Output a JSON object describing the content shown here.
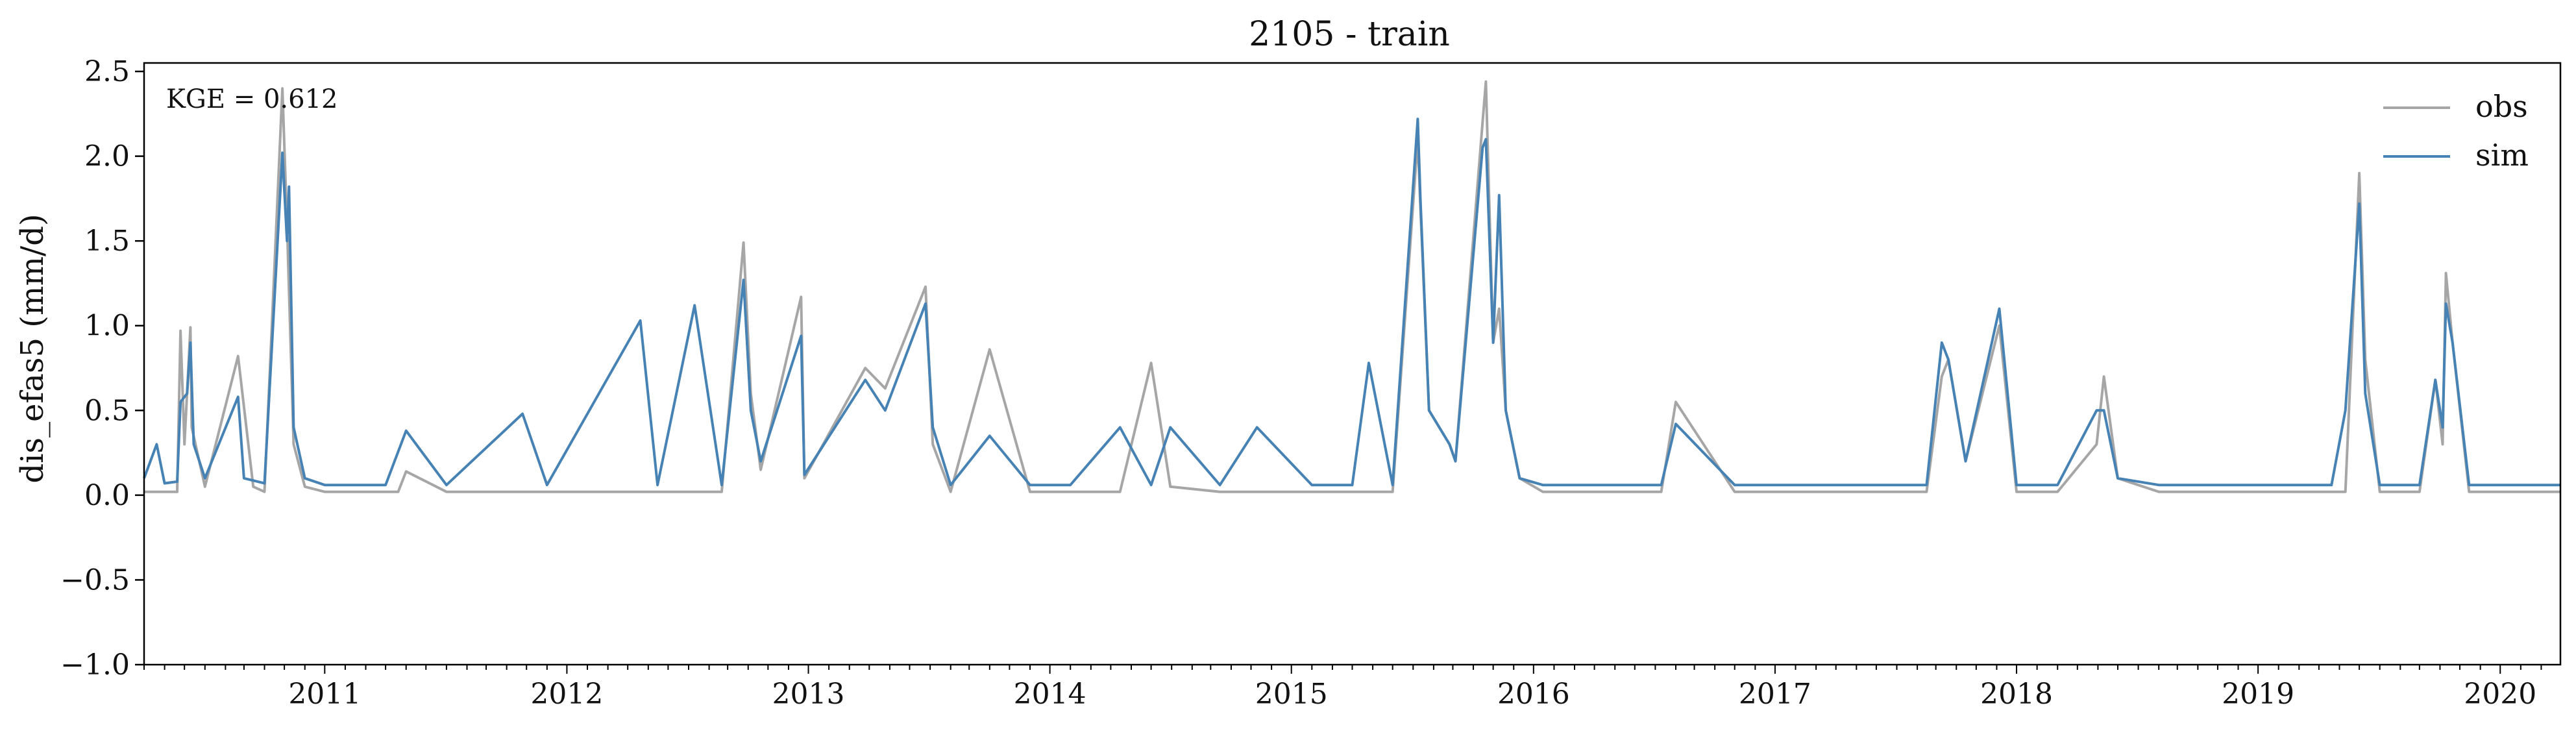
{
  "chart_data": {
    "type": "line",
    "title": "2105 - train",
    "xlabel": "",
    "ylabel": "dis_efas5 (mm/d)",
    "ylim": [
      -1.0,
      2.55
    ],
    "xlim": [
      "2010-10-01",
      "2020-09-30"
    ],
    "yticks": [
      "2.5",
      "2.0",
      "1.5",
      "1.0",
      "0.5",
      "0.0",
      "−0.5",
      "−1.0"
    ],
    "ytick_values": [
      2.5,
      2.0,
      1.5,
      1.0,
      0.5,
      0.0,
      -0.5,
      -1.0
    ],
    "xticks": [
      "2011",
      "2012",
      "2013",
      "2014",
      "2015",
      "2016",
      "2017",
      "2018",
      "2019",
      "2020"
    ],
    "grid": false,
    "legend_position": "top-right",
    "annotation": "KGE = 0.612",
    "colors": {
      "obs": "#a6a6a6",
      "sim": "#4682b4"
    },
    "series": [
      {
        "name": "obs",
        "x": [
          "2010-10-01",
          "2010-11-20",
          "2010-11-25",
          "2010-12-01",
          "2010-12-10",
          "2010-12-12",
          "2011-01-01",
          "2011-02-20",
          "2011-03-15",
          "2011-04-01",
          "2011-04-28",
          "2011-05-05",
          "2011-05-15",
          "2011-06-01",
          "2011-07-01",
          "2011-10-20",
          "2011-11-01",
          "2012-01-01",
          "2012-04-25",
          "2012-06-01",
          "2012-10-20",
          "2012-11-15",
          "2013-01-10",
          "2013-02-20",
          "2013-03-25",
          "2013-04-05",
          "2013-04-20",
          "2013-06-20",
          "2013-06-25",
          "2013-09-25",
          "2013-10-25",
          "2013-12-25",
          "2014-01-05",
          "2014-02-01",
          "2014-04-01",
          "2014-06-01",
          "2014-08-01",
          "2014-10-15",
          "2014-12-01",
          "2014-12-30",
          "2015-03-15",
          "2015-05-10",
          "2015-08-01",
          "2015-10-01",
          "2015-10-26",
          "2015-12-01",
          "2016-01-08",
          "2016-01-12",
          "2016-01-25",
          "2016-02-25",
          "2016-03-05",
          "2016-04-15",
          "2016-04-20",
          "2016-05-01",
          "2016-05-10",
          "2016-05-20",
          "2016-06-10",
          "2016-07-15",
          "2016-09-01",
          "2017-01-10",
          "2017-02-01",
          "2017-05-01",
          "2017-08-01",
          "2017-11-01",
          "2018-02-15",
          "2018-03-10",
          "2018-03-20",
          "2018-04-15",
          "2018-06-05",
          "2018-07-01",
          "2018-09-01",
          "2018-10-30",
          "2018-11-10",
          "2018-12-01",
          "2019-02-01",
          "2019-04-20",
          "2019-06-01",
          "2019-08-01",
          "2019-10-20",
          "2019-11-10",
          "2019-12-01",
          "2019-12-10",
          "2020-01-01",
          "2020-02-01",
          "2020-03-01",
          "2020-03-25",
          "2020-04-05",
          "2020-04-10",
          "2020-04-20",
          "2020-05-15",
          "2020-07-01",
          "2020-09-30"
        ],
        "values": [
          0.02,
          0.02,
          0.97,
          0.3,
          0.99,
          0.4,
          0.05,
          0.82,
          0.05,
          0.02,
          2.4,
          1.6,
          0.3,
          0.05,
          0.02,
          0.02,
          0.14,
          0.02,
          0.02,
          0.02,
          0.02,
          0.02,
          0.02,
          0.02,
          1.49,
          0.6,
          0.15,
          1.17,
          0.1,
          0.75,
          0.63,
          1.23,
          0.3,
          0.02,
          0.86,
          0.02,
          0.02,
          0.02,
          0.78,
          0.05,
          0.02,
          0.02,
          0.02,
          0.02,
          0.02,
          0.02,
          2.1,
          1.7,
          0.5,
          0.3,
          0.2,
          2.2,
          2.44,
          0.9,
          1.1,
          0.5,
          0.1,
          0.02,
          0.02,
          0.02,
          0.55,
          0.02,
          0.02,
          0.02,
          0.02,
          0.7,
          0.8,
          0.2,
          1.0,
          0.02,
          0.02,
          0.3,
          0.7,
          0.1,
          0.02,
          0.02,
          0.02,
          0.02,
          0.02,
          0.02,
          1.9,
          0.8,
          0.02,
          0.02,
          0.02,
          0.68,
          0.3,
          1.31,
          0.9,
          0.02,
          0.02,
          0.02
        ]
      },
      {
        "name": "sim",
        "x": [
          "2010-10-01",
          "2010-10-20",
          "2010-11-01",
          "2010-11-20",
          "2010-11-25",
          "2010-12-05",
          "2010-12-10",
          "2010-12-15",
          "2011-01-01",
          "2011-02-20",
          "2011-03-01",
          "2011-04-01",
          "2011-04-28",
          "2011-05-05",
          "2011-05-08",
          "2011-05-15",
          "2011-06-01",
          "2011-07-01",
          "2011-10-01",
          "2011-11-01",
          "2012-01-01",
          "2012-04-25",
          "2012-06-01",
          "2012-10-20",
          "2012-11-15",
          "2013-01-10",
          "2013-02-20",
          "2013-03-25",
          "2013-04-05",
          "2013-04-20",
          "2013-06-20",
          "2013-06-25",
          "2013-09-25",
          "2013-10-25",
          "2013-12-25",
          "2014-01-05",
          "2014-02-01",
          "2014-04-01",
          "2014-06-01",
          "2014-08-01",
          "2014-10-15",
          "2014-12-01",
          "2014-12-30",
          "2015-03-15",
          "2015-05-10",
          "2015-08-01",
          "2015-10-01",
          "2015-10-26",
          "2015-12-01",
          "2016-01-08",
          "2016-01-12",
          "2016-01-25",
          "2016-02-25",
          "2016-03-05",
          "2016-04-15",
          "2016-04-20",
          "2016-05-01",
          "2016-05-10",
          "2016-05-20",
          "2016-06-10",
          "2016-07-15",
          "2016-09-01",
          "2017-01-10",
          "2017-02-01",
          "2017-05-01",
          "2017-08-01",
          "2017-11-01",
          "2018-02-15",
          "2018-03-10",
          "2018-03-20",
          "2018-04-15",
          "2018-06-05",
          "2018-07-01",
          "2018-09-01",
          "2018-10-30",
          "2018-11-10",
          "2018-12-01",
          "2019-02-01",
          "2019-04-20",
          "2019-06-01",
          "2019-08-01",
          "2019-10-20",
          "2019-11-10",
          "2019-12-01",
          "2019-12-10",
          "2020-01-01",
          "2020-02-01",
          "2020-03-01",
          "2020-03-25",
          "2020-04-05",
          "2020-04-10",
          "2020-04-20",
          "2020-05-15",
          "2020-07-01",
          "2020-09-30"
        ],
        "values": [
          0.1,
          0.3,
          0.07,
          0.08,
          0.55,
          0.6,
          0.9,
          0.3,
          0.1,
          0.58,
          0.1,
          0.07,
          2.02,
          1.5,
          1.82,
          0.4,
          0.1,
          0.06,
          0.06,
          0.38,
          0.06,
          0.48,
          0.06,
          1.03,
          0.06,
          1.12,
          0.06,
          1.27,
          0.5,
          0.2,
          0.94,
          0.12,
          0.68,
          0.5,
          1.13,
          0.4,
          0.06,
          0.35,
          0.06,
          0.06,
          0.4,
          0.06,
          0.4,
          0.06,
          0.4,
          0.06,
          0.06,
          0.78,
          0.06,
          2.22,
          1.75,
          0.5,
          0.3,
          0.2,
          2.05,
          2.1,
          0.9,
          1.77,
          0.5,
          0.1,
          0.06,
          0.06,
          0.06,
          0.42,
          0.06,
          0.06,
          0.06,
          0.06,
          0.9,
          0.8,
          0.2,
          1.1,
          0.06,
          0.06,
          0.5,
          0.5,
          0.1,
          0.06,
          0.06,
          0.06,
          0.06,
          0.06,
          0.5,
          1.72,
          0.6,
          0.06,
          0.06,
          0.06,
          0.68,
          0.4,
          1.13,
          0.9,
          0.06,
          0.06,
          0.06
        ]
      }
    ]
  }
}
